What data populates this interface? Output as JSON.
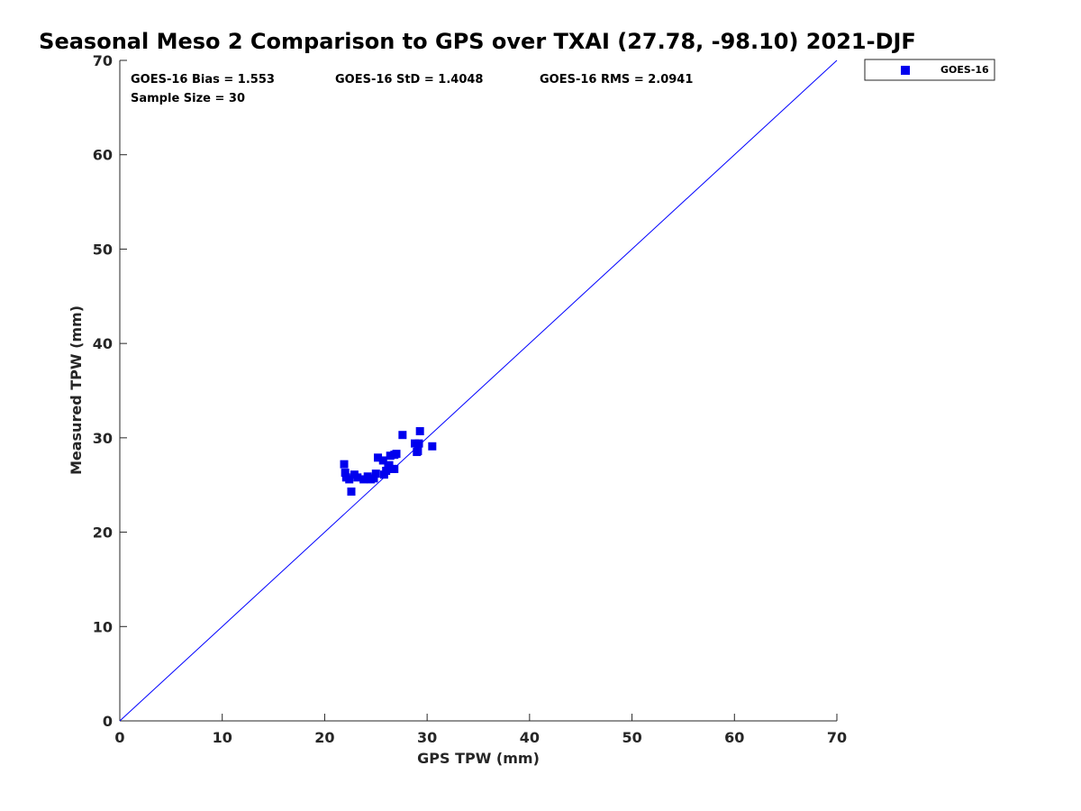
{
  "chart_data": {
    "type": "scatter",
    "title": "Seasonal Meso 2 Comparison to GPS over TXAI (27.78, -98.10) 2021-DJF",
    "xlabel": "GPS TPW (mm)",
    "ylabel": "Measured TPW (mm)",
    "xlim": [
      0,
      70
    ],
    "ylim": [
      0,
      70
    ],
    "xticks": [
      "0",
      "10",
      "20",
      "30",
      "40",
      "50",
      "60",
      "70"
    ],
    "yticks": [
      "0",
      "10",
      "20",
      "30",
      "40",
      "50",
      "60",
      "70"
    ],
    "grid": false,
    "legend_position": "outside-top-right",
    "reference_line": {
      "x": [
        0,
        70
      ],
      "y": [
        0,
        70
      ],
      "color": "#0000ff"
    },
    "stats": {
      "bias": "GOES-16 Bias = 1.553",
      "std": "GOES-16 StD = 1.4048",
      "rms": "GOES-16 RMS = 2.0941",
      "sample": "Sample Size = 30"
    },
    "series": [
      {
        "name": "GOES-16",
        "color": "#0000ee",
        "marker": "square",
        "points": [
          [
            21.9,
            27.2
          ],
          [
            22.0,
            26.3
          ],
          [
            22.1,
            25.8
          ],
          [
            22.4,
            25.6
          ],
          [
            22.6,
            24.3
          ],
          [
            22.9,
            26.1
          ],
          [
            23.2,
            25.8
          ],
          [
            23.8,
            25.6
          ],
          [
            24.2,
            25.9
          ],
          [
            24.5,
            25.6
          ],
          [
            24.8,
            25.7
          ],
          [
            25.0,
            26.2
          ],
          [
            25.2,
            27.9
          ],
          [
            25.7,
            27.6
          ],
          [
            25.8,
            26.1
          ],
          [
            26.0,
            26.5
          ],
          [
            26.2,
            27.0
          ],
          [
            26.4,
            28.1
          ],
          [
            26.6,
            26.7
          ],
          [
            26.8,
            26.7
          ],
          [
            26.8,
            28.2
          ],
          [
            27.0,
            28.3
          ],
          [
            27.6,
            30.3
          ],
          [
            28.8,
            29.4
          ],
          [
            29.0,
            28.5
          ],
          [
            29.1,
            28.6
          ],
          [
            29.2,
            29.4
          ],
          [
            29.3,
            30.7
          ],
          [
            30.5,
            29.1
          ],
          [
            26.3,
            27.1
          ]
        ]
      }
    ]
  }
}
